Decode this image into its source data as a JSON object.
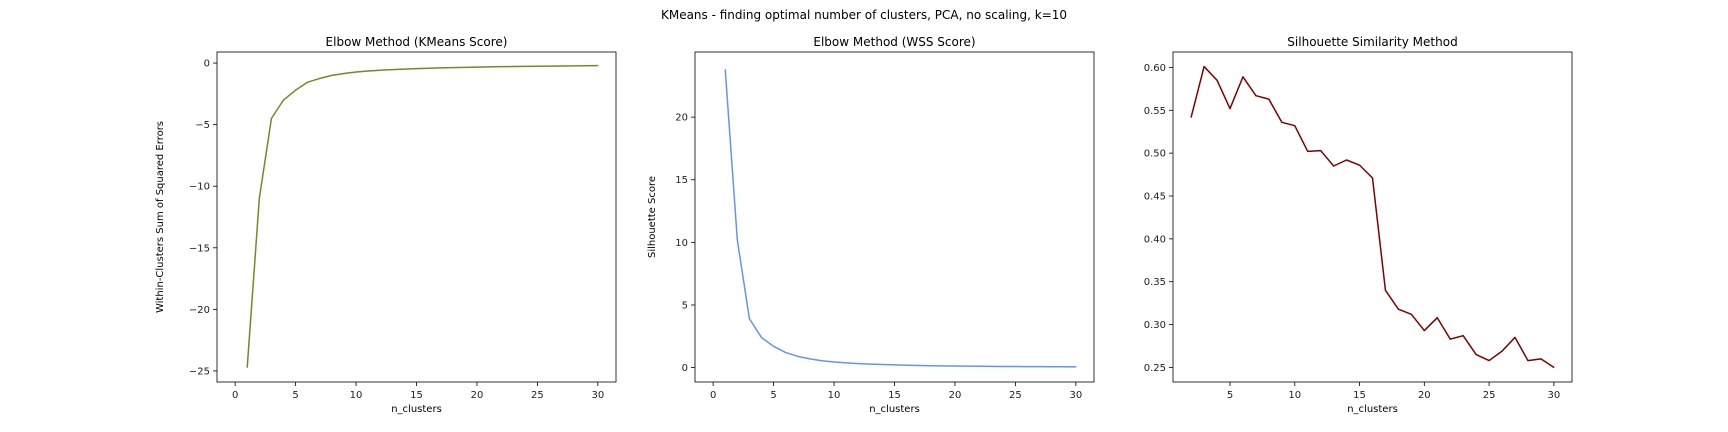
{
  "figure": {
    "suptitle": "KMeans - finding optimal number of clusters, PCA, no scaling, k=10"
  },
  "chart_data": [
    {
      "type": "line",
      "title": "Elbow Method (KMeans Score)",
      "xlabel": "n_clusters",
      "ylabel": "Within-Clusters Sum of Squared Errors",
      "xlim": [
        -1.5,
        31.5
      ],
      "ylim": [
        -25.9,
        0.9
      ],
      "xticks": [
        0,
        5,
        10,
        15,
        20,
        25,
        30
      ],
      "yticks": [
        0,
        -5,
        -10,
        -15,
        -20,
        -25
      ],
      "ytick_labels": [
        "0",
        "−5",
        "−10",
        "−15",
        "−20",
        "−25"
      ],
      "color": "#6b8e23",
      "x": [
        1,
        2,
        3,
        4,
        5,
        6,
        7,
        8,
        9,
        10,
        11,
        12,
        13,
        14,
        15,
        16,
        17,
        18,
        19,
        20,
        21,
        22,
        23,
        24,
        25,
        26,
        27,
        28,
        29,
        30
      ],
      "y": [
        -24.7,
        -11.0,
        -4.5,
        -3.0,
        -2.2,
        -1.55,
        -1.25,
        -1.0,
        -0.85,
        -0.72,
        -0.64,
        -0.58,
        -0.53,
        -0.49,
        -0.45,
        -0.42,
        -0.39,
        -0.37,
        -0.35,
        -0.33,
        -0.31,
        -0.29,
        -0.28,
        -0.27,
        -0.26,
        -0.25,
        -0.24,
        -0.23,
        -0.22,
        -0.21
      ]
    },
    {
      "type": "line",
      "title": "Elbow Method (WSS Score)",
      "xlabel": "n_clusters",
      "ylabel": "Silhouette Score",
      "xlim": [
        -1.5,
        31.5
      ],
      "ylim": [
        -1.15,
        25.2
      ],
      "xticks": [
        0,
        5,
        10,
        15,
        20,
        25,
        30
      ],
      "yticks": [
        0,
        5,
        10,
        15,
        20
      ],
      "ytick_labels": [
        "0",
        "5",
        "10",
        "15",
        "20"
      ],
      "color": "#6495ed",
      "x": [
        1,
        2,
        3,
        4,
        5,
        6,
        7,
        8,
        9,
        10,
        11,
        12,
        13,
        14,
        15,
        16,
        17,
        18,
        19,
        20,
        21,
        22,
        23,
        24,
        25,
        26,
        27,
        28,
        29,
        30
      ],
      "y": [
        23.8,
        10.2,
        3.9,
        2.4,
        1.7,
        1.2,
        0.9,
        0.7,
        0.55,
        0.45,
        0.38,
        0.32,
        0.28,
        0.25,
        0.22,
        0.19,
        0.17,
        0.15,
        0.14,
        0.13,
        0.12,
        0.11,
        0.1,
        0.09,
        0.09,
        0.08,
        0.08,
        0.07,
        0.07,
        0.06
      ]
    },
    {
      "type": "line",
      "title": "Silhouette Similarity Method",
      "xlabel": "",
      "xlabel_shown": "n_clusters",
      "ylabel": "",
      "xlim": [
        0.6,
        31.4
      ],
      "ylim": [
        0.233,
        0.618
      ],
      "xticks": [
        5,
        10,
        15,
        20,
        25,
        30
      ],
      "yticks": [
        0.25,
        0.3,
        0.35,
        0.4,
        0.45,
        0.5,
        0.55,
        0.6
      ],
      "ytick_labels": [
        "0.25",
        "0.30",
        "0.35",
        "0.40",
        "0.45",
        "0.50",
        "0.55",
        "0.60"
      ],
      "color": "#800000",
      "x": [
        2,
        3,
        4,
        5,
        6,
        7,
        8,
        9,
        10,
        11,
        12,
        13,
        14,
        15,
        16,
        17,
        18,
        19,
        20,
        21,
        22,
        23,
        24,
        25,
        26,
        27,
        28,
        29,
        30
      ],
      "y": [
        0.542,
        0.601,
        0.585,
        0.552,
        0.589,
        0.567,
        0.563,
        0.536,
        0.532,
        0.502,
        0.503,
        0.485,
        0.492,
        0.486,
        0.471,
        0.34,
        0.318,
        0.312,
        0.293,
        0.308,
        0.283,
        0.287,
        0.265,
        0.258,
        0.269,
        0.285,
        0.258,
        0.26,
        0.25
      ]
    }
  ]
}
